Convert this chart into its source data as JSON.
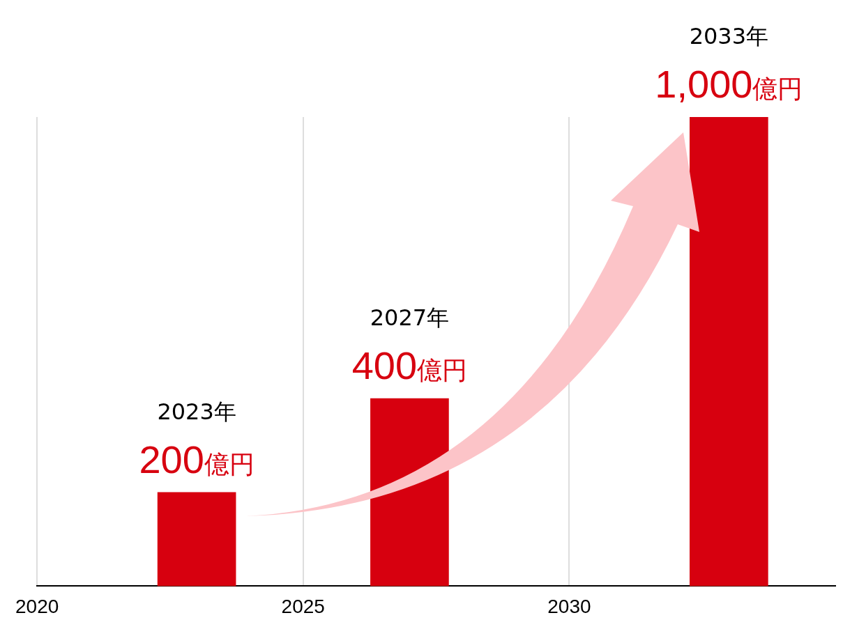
{
  "chart_data": {
    "type": "bar",
    "x": [
      2023,
      2027,
      2033
    ],
    "series": [
      {
        "color": "#d7000f",
        "values": [
          200,
          400,
          1000
        ],
        "value_labels": [
          "200億円",
          "400億円",
          "1,000億円"
        ]
      }
    ],
    "xlim": [
      2020,
      2035
    ],
    "xticks": [
      2020,
      2025,
      2030
    ],
    "ylim": [
      0,
      1000
    ],
    "tick_labels": "x",
    "grid": "x",
    "legend": false,
    "annotations": [
      "2023年",
      "2027年",
      "2033年"
    ]
  }
}
